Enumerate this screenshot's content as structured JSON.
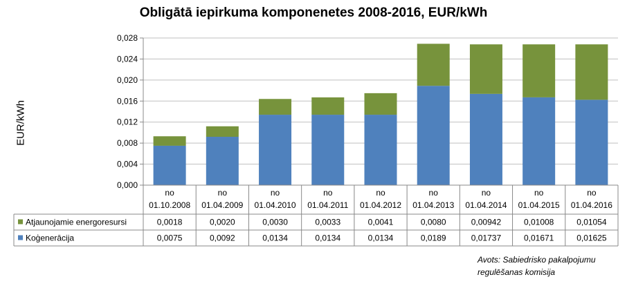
{
  "chart_data": {
    "type": "bar",
    "stacked": true,
    "title": "Obligātā iepirkuma komponenetes 2008-2016, EUR/kWh",
    "ylabel": "EUR/kWh",
    "ylim": [
      0,
      0.028
    ],
    "yticks": [
      "0,000",
      "0,004",
      "0,008",
      "0,012",
      "0,016",
      "0,020",
      "0,024",
      "0,028"
    ],
    "grid": true,
    "categories": [
      [
        "no",
        "01.10.2008"
      ],
      [
        "no",
        "01.04.2009"
      ],
      [
        "no",
        "01.04.2010"
      ],
      [
        "no",
        "01.04.2011"
      ],
      [
        "no",
        "01.04.2012"
      ],
      [
        "no",
        "01.04.2013"
      ],
      [
        "no",
        "01.04.2014"
      ],
      [
        "no",
        "01.04.2015"
      ],
      [
        "no",
        "01.04.2016"
      ]
    ],
    "series": [
      {
        "name": "Koģenerācija",
        "color": "#4F81BD",
        "values": [
          0.0075,
          0.0092,
          0.0134,
          0.0134,
          0.0134,
          0.0189,
          0.01737,
          0.01671,
          0.01625
        ],
        "labels": [
          "0,0075",
          "0,0092",
          "0,0134",
          "0,0134",
          "0,0134",
          "0,0189",
          "0,01737",
          "0,01671",
          "0,01625"
        ]
      },
      {
        "name": "Atjaunojamie energoresursi",
        "color": "#77933C",
        "values": [
          0.0018,
          0.002,
          0.003,
          0.0033,
          0.0041,
          0.008,
          0.00942,
          0.01008,
          0.01054
        ],
        "labels": [
          "0,0018",
          "0,0020",
          "0,0030",
          "0,0033",
          "0,0041",
          "0,0080",
          "0,00942",
          "0,01008",
          "0,01054"
        ]
      }
    ],
    "table_row_order": [
      1,
      0
    ]
  },
  "source": {
    "line1": "Avots: Sabiedrisko pakalpojumu",
    "line2": "regulēšanas komisija"
  }
}
